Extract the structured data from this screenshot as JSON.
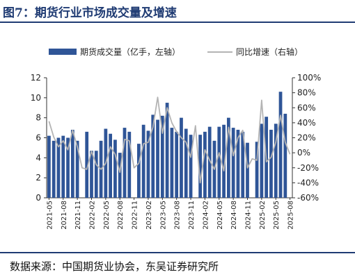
{
  "figure": {
    "title": "图7：期货行业市场成交量及增速",
    "source": "数据来源：中国期货业协会，东吴证券研究所"
  },
  "colors": {
    "bar": "#2f5597",
    "line": "#b4b4b4",
    "accent": "#1f3b73"
  },
  "chart_data": {
    "type": "bar",
    "title": "",
    "legend_position": "top",
    "categories": [
      "2021-05",
      "2021-06",
      "2021-07",
      "2021-08",
      "2021-09",
      "2021-10",
      "2021-11",
      "2021-12",
      "2022-01",
      "2022-02",
      "2022-03",
      "2022-04",
      "2022-05",
      "2022-06",
      "2022-07",
      "2022-08",
      "2022-09",
      "2022-10",
      "2022-11",
      "2022-12",
      "2023-01",
      "2023-02",
      "2023-03",
      "2023-04",
      "2023-05",
      "2023-06",
      "2023-07",
      "2023-08",
      "2023-09",
      "2023-10",
      "2023-11",
      "2023-12",
      "2024-01",
      "2024-02",
      "2024-03",
      "2024-04",
      "2024-05",
      "2024-06",
      "2024-07",
      "2024-08",
      "2024-09",
      "2024-10",
      "2024-11",
      "2024-12",
      "2025-01",
      "2025-02",
      "2025-03",
      "2025-04",
      "2025-05",
      "2025-06",
      "2025-07",
      "2025-08"
    ],
    "x_tick_labels": [
      "2021-05",
      "2021-08",
      "2021-11",
      "2022-02",
      "2022-05",
      "2022-08",
      "2022-11",
      "2023-02",
      "2023-05",
      "2023-08",
      "2023-11",
      "2024-02",
      "2024-05",
      "2024-08",
      "2024-11",
      "2025-02",
      "2025-05",
      "2025-08"
    ],
    "series": [
      {
        "name": "期货成交量（亿手，左轴）",
        "type": "bar",
        "axis": "left",
        "values": [
          6.2,
          5.7,
          6.0,
          6.2,
          6.0,
          6.8,
          5.7,
          0,
          6.6,
          4.7,
          4.7,
          5.7,
          6.9,
          6.4,
          5.8,
          4.5,
          7.0,
          6.6,
          0,
          5.4,
          7.3,
          6.7,
          8.3,
          7.8,
          8.2,
          9.5,
          7.0,
          6.6,
          8.0,
          6.9,
          6.3,
          0,
          6.3,
          6.6,
          7.1,
          5.7,
          7.1,
          7.3,
          8.0,
          7.0,
          6.8,
          6.6,
          5.5,
          0,
          5.6,
          7.4,
          8.1,
          6.8,
          7.4,
          10.6,
          8.4,
          0
        ]
      },
      {
        "name": "同比增速（右轴）",
        "type": "line",
        "axis": "right",
        "values": [
          42,
          21,
          8,
          16,
          4,
          30,
          8,
          -20,
          -22,
          2,
          -16,
          -22,
          -14,
          8,
          -2,
          -26,
          18,
          16,
          -20,
          -14,
          12,
          14,
          34,
          74,
          26,
          60,
          40,
          28,
          20,
          14,
          -6,
          36,
          -40,
          4,
          -10,
          -22,
          0,
          -24,
          34,
          -4,
          20,
          30,
          -20,
          -8,
          -10,
          70,
          -12,
          -6,
          14,
          50,
          14,
          -2
        ]
      }
    ],
    "y_left": {
      "ylim": [
        0,
        12
      ],
      "ticks": [
        "0",
        "2",
        "4",
        "6",
        "8",
        "10",
        "12"
      ]
    },
    "y_right": {
      "ylim": [
        -60,
        100
      ],
      "ticks": [
        "-60%",
        "-40%",
        "-20%",
        "0%",
        "20%",
        "40%",
        "60%",
        "80%",
        "100%"
      ]
    }
  }
}
